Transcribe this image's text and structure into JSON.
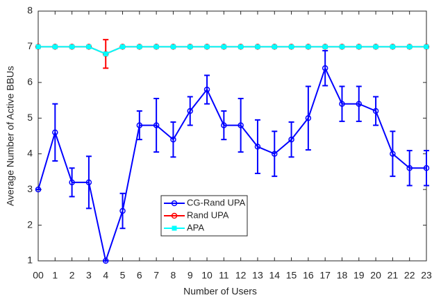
{
  "chart_data": {
    "type": "line",
    "xlabel": "Number of Users",
    "ylabel": "Average Number of Active BBUs",
    "x": [
      0,
      1,
      2,
      3,
      4,
      5,
      6,
      7,
      8,
      9,
      10,
      11,
      12,
      13,
      14,
      15,
      16,
      17,
      18,
      19,
      20,
      21,
      22,
      23
    ],
    "xlim": [
      0,
      23
    ],
    "xticks": [
      {
        "value": 0,
        "label": "00"
      },
      1,
      2,
      3,
      4,
      5,
      6,
      7,
      8,
      9,
      10,
      11,
      12,
      13,
      14,
      15,
      16,
      17,
      18,
      19,
      20,
      21,
      22,
      23
    ],
    "ylim": [
      1,
      8
    ],
    "yticks": [
      1,
      2,
      3,
      4,
      5,
      6,
      7,
      8
    ],
    "grid": false,
    "series": [
      {
        "name": "CG-Rand UPA",
        "color": "#0000ff",
        "marker": "circle",
        "values": [
          3,
          4.6,
          3.2,
          3.2,
          1,
          2.4,
          4.8,
          4.8,
          4.4,
          5.2,
          5.8,
          4.8,
          4.8,
          4.2,
          4.0,
          4.4,
          5.0,
          6.4,
          5.4,
          5.4,
          5.2,
          4.0,
          3.6,
          3.6
        ],
        "errors": [
          0,
          0.8,
          0.4,
          0.73,
          0,
          0.49,
          0.4,
          0.75,
          0.49,
          0.4,
          0.4,
          0.4,
          0.75,
          0.75,
          0.63,
          0.49,
          0.89,
          0.49,
          0.49,
          0.49,
          0.4,
          0.63,
          0.49,
          0.49
        ]
      },
      {
        "name": "Rand UPA",
        "color": "#ff0000",
        "marker": "circle",
        "values": [
          7,
          7,
          7,
          7,
          6.8,
          7,
          7,
          7,
          7,
          7,
          7,
          7,
          7,
          7,
          7,
          7,
          7,
          7,
          7,
          7,
          7,
          7,
          7,
          7
        ],
        "errors": [
          0,
          0,
          0,
          0,
          0.4,
          0,
          0,
          0,
          0,
          0,
          0,
          0,
          0,
          0,
          0,
          0,
          0,
          0,
          0,
          0,
          0,
          0,
          0,
          0
        ]
      },
      {
        "name": "APA",
        "color": "#00ffff",
        "marker": "square",
        "values": [
          7,
          7,
          7,
          7,
          6.8,
          7,
          7,
          7,
          7,
          7,
          7,
          7,
          7,
          7,
          7,
          7,
          7,
          7,
          7,
          7,
          7,
          7,
          7,
          7
        ]
      }
    ]
  }
}
